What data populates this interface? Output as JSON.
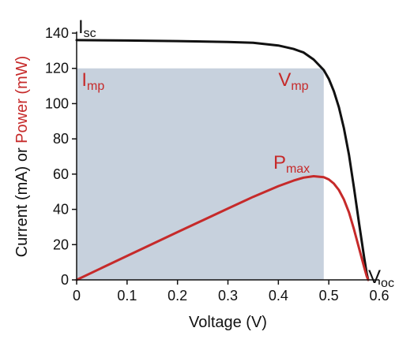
{
  "chart_data": {
    "type": "line",
    "xlabel": "Voltage (V)",
    "ylabel_parts": [
      "Current (mA) or ",
      "Power (mW)"
    ],
    "xlim": [
      0,
      0.6
    ],
    "ylim": [
      0,
      140
    ],
    "xticks": [
      "0",
      "0.1",
      "0.2",
      "0.3",
      "0.4",
      "0.5",
      "0.6"
    ],
    "yticks": [
      "0",
      "20",
      "40",
      "60",
      "80",
      "100",
      "120",
      "140"
    ],
    "grid": false,
    "legend": "none",
    "series": [
      {
        "color": "#111111",
        "x": [
          0,
          0.1,
          0.2,
          0.3,
          0.35,
          0.4,
          0.43,
          0.45,
          0.47,
          0.49,
          0.5,
          0.51,
          0.52,
          0.53,
          0.54,
          0.55,
          0.56,
          0.57,
          0.575,
          0.578
        ],
        "y": [
          136,
          135.8,
          135.5,
          135,
          134.5,
          133,
          131,
          129,
          125,
          119,
          114,
          107,
          98,
          86,
          71,
          52,
          32,
          13,
          4,
          0
        ]
      },
      {
        "color": "#c62a2a",
        "x": [
          0,
          0.1,
          0.2,
          0.3,
          0.35,
          0.4,
          0.43,
          0.45,
          0.47,
          0.49,
          0.5,
          0.51,
          0.52,
          0.53,
          0.54,
          0.55,
          0.56,
          0.57,
          0.575,
          0.578
        ],
        "y": [
          0,
          13.6,
          27.1,
          40.5,
          47.1,
          53.2,
          56.3,
          58,
          58.8,
          58.3,
          57,
          54.6,
          51,
          45.6,
          38.3,
          28.6,
          17.9,
          7.4,
          2.3,
          0
        ]
      }
    ],
    "shaded_region": {
      "x": [
        0,
        0.49
      ],
      "y": [
        0,
        120
      ],
      "color": "#c7d1dd"
    },
    "annotations": [
      {
        "main": "I",
        "sub": "sc",
        "x": 0.0,
        "y": 140,
        "color": "#111111"
      },
      {
        "main": "I",
        "sub": "mp",
        "x": 0.01,
        "y": 110,
        "color": "#c62a2a"
      },
      {
        "main": "V",
        "sub": "mp",
        "x": 0.4,
        "y": 110,
        "color": "#c62a2a"
      },
      {
        "main": "P",
        "sub": "max",
        "x": 0.39,
        "y": 63,
        "color": "#c62a2a"
      },
      {
        "main": "V",
        "sub": "oc",
        "x": 0.575,
        "y": 0,
        "color": "#111111"
      }
    ]
  }
}
